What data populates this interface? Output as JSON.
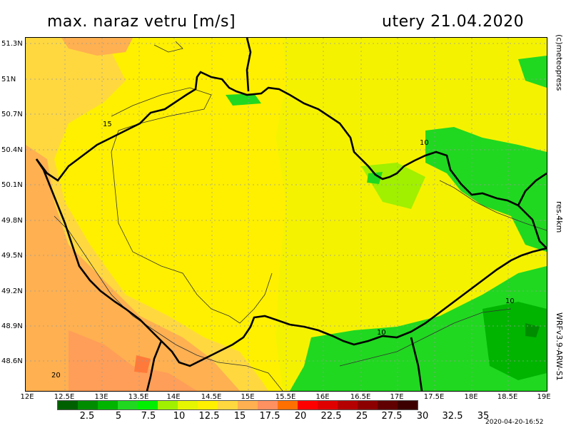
{
  "header": {
    "title": "max. naraz vetru [m/s]",
    "date": "utery 21.04.2020"
  },
  "side_labels": {
    "copyright": "(c)meteopress",
    "resolution": "res.4km",
    "model": "WRFv3.9-ARW-S1"
  },
  "axes": {
    "lat_ticks": [
      "51.3N",
      "51N",
      "50.7N",
      "50.4N",
      "50.1N",
      "49.8N",
      "49.5N",
      "49.2N",
      "48.9N",
      "48.6N"
    ],
    "lon_ticks": [
      "12E",
      "12.5E",
      "13E",
      "13.5E",
      "14E",
      "14.5E",
      "15E",
      "15.5E",
      "16E",
      "16.5E",
      "17E",
      "17.5E",
      "18E",
      "18.5E",
      "19E"
    ]
  },
  "contour_labels": [
    "15",
    "10",
    "10",
    "10",
    "20"
  ],
  "legend": {
    "colors": [
      "#006000",
      "#008c00",
      "#00b400",
      "#20d820",
      "#00f000",
      "#a0f000",
      "#e6f500",
      "#fff000",
      "#ffd840",
      "#ffb050",
      "#ff9060",
      "#ff7000",
      "#ff0000",
      "#e00000",
      "#b40000",
      "#8c0000",
      "#600000",
      "#3c0000"
    ],
    "labels": [
      "2.5",
      "5",
      "7.5",
      "10",
      "12.5",
      "15",
      "17.5",
      "20",
      "22.5",
      "25",
      "27.5",
      "30",
      "32.5",
      "35"
    ]
  },
  "footer": {
    "timestamp": "2020-04-20-16:52"
  }
}
